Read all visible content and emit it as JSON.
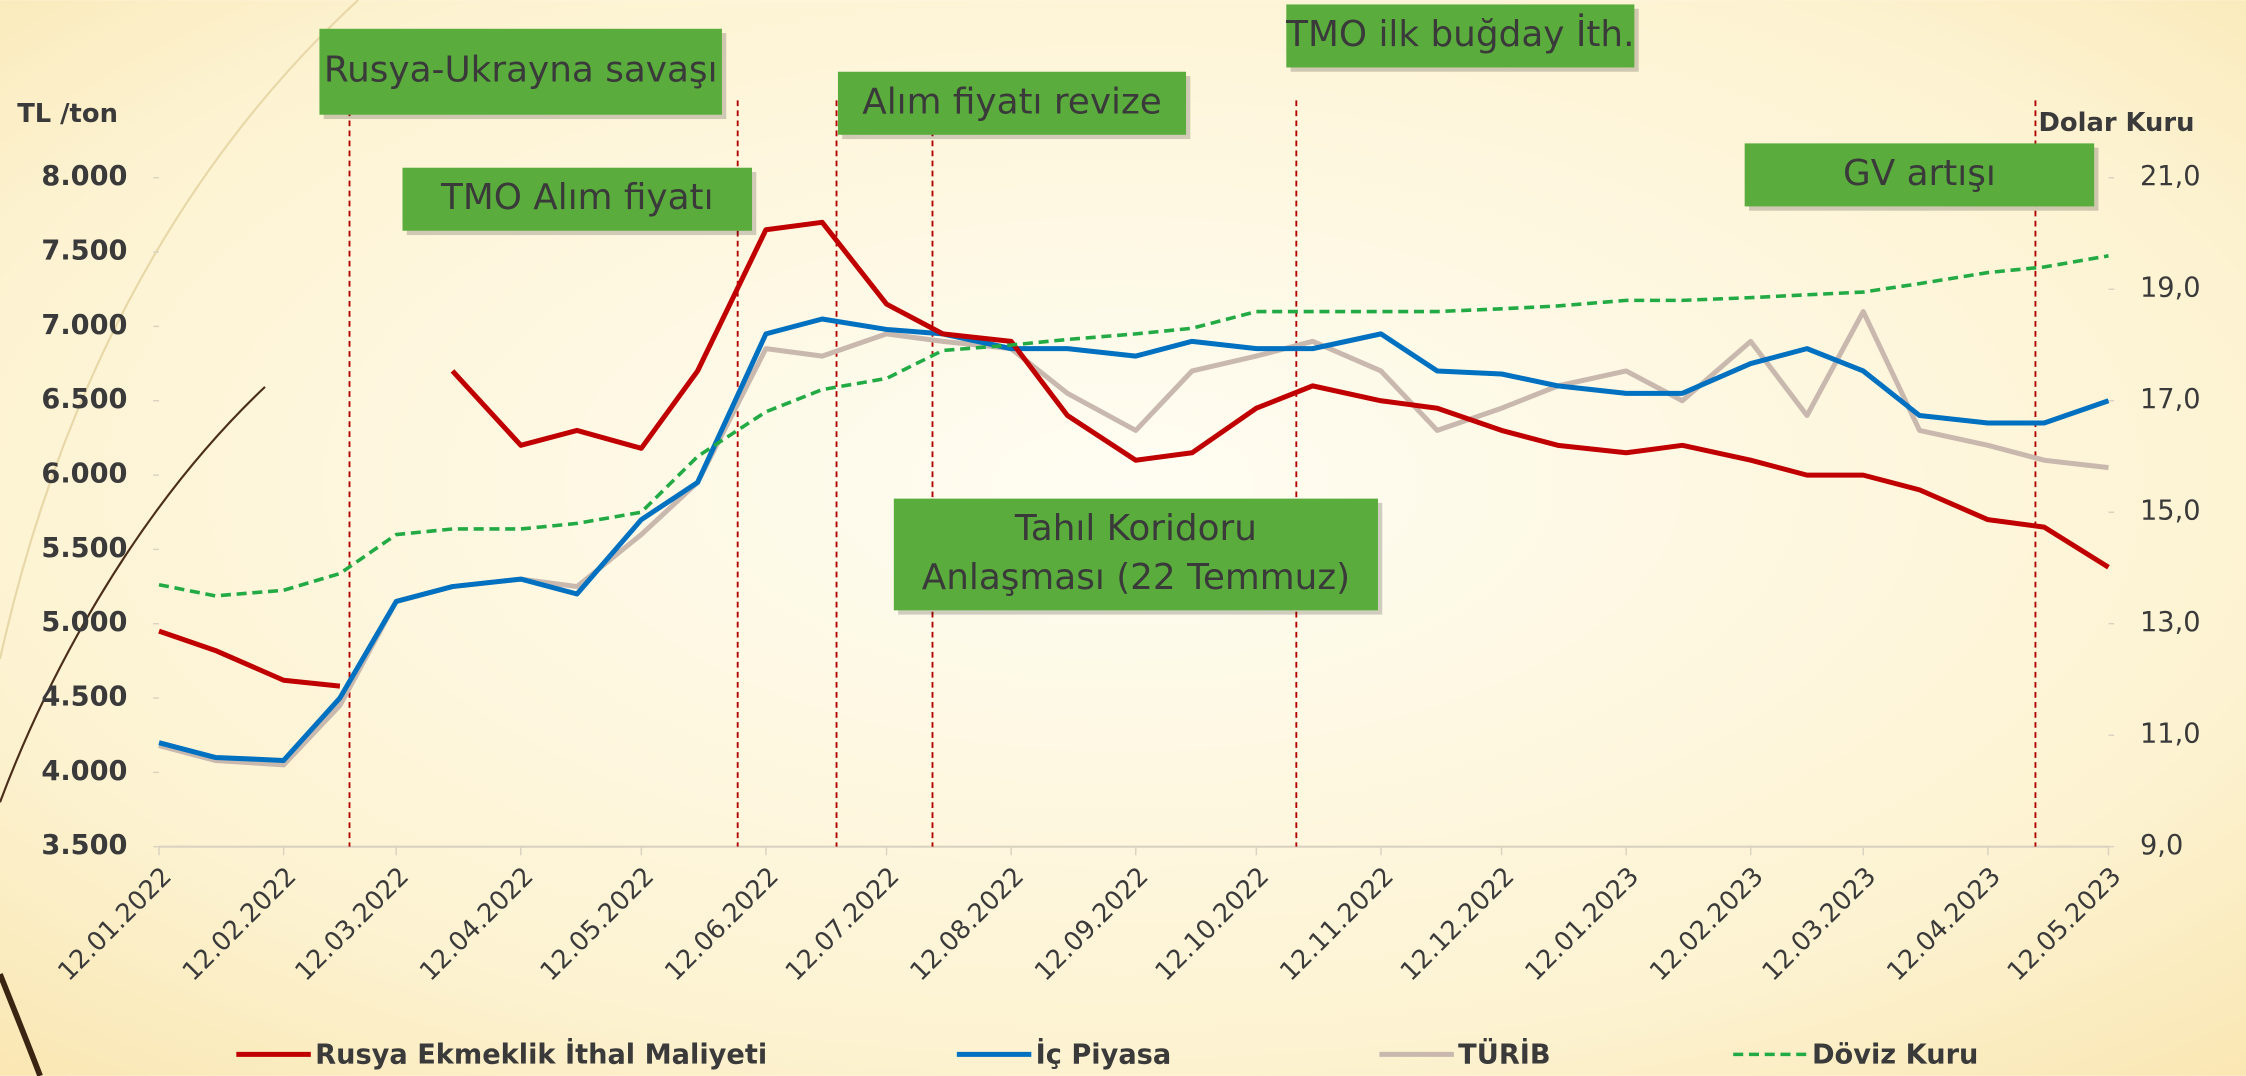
{
  "chart_data": {
    "type": "line",
    "y_label": "TL /ton",
    "y2_label": "Dolar Kuru",
    "x": [
      "12.01.2022",
      "26.01.2022",
      "12.02.2022",
      "26.02.2022",
      "12.03.2022",
      "26.03.2022",
      "12.04.2022",
      "26.04.2022",
      "12.05.2022",
      "26.05.2022",
      "12.06.2022",
      "26.06.2022",
      "12.07.2022",
      "26.07.2022",
      "12.08.2022",
      "26.08.2022",
      "12.09.2022",
      "26.09.2022",
      "12.10.2022",
      "26.10.2022",
      "12.11.2022",
      "26.11.2022",
      "12.12.2022",
      "26.12.2022",
      "12.01.2023",
      "26.01.2023",
      "12.02.2023",
      "26.02.2023",
      "12.03.2023",
      "26.03.2023",
      "12.04.2023",
      "26.04.2023",
      "12.05.2023"
    ],
    "xlim": [
      "12.01.2022",
      "12.05.2023"
    ],
    "xticks": [
      "12.01.2022",
      "12.02.2022",
      "12.03.2022",
      "12.04.2022",
      "12.05.2022",
      "12.06.2022",
      "12.07.2022",
      "12.08.2022",
      "12.09.2022",
      "12.10.2022",
      "12.11.2022",
      "12.12.2022",
      "12.01.2023",
      "12.02.2023",
      "12.03.2023",
      "12.04.2023",
      "12.05.2023"
    ],
    "ylim": [
      3500,
      8000
    ],
    "yticks": [
      {
        "value": 3500,
        "label": "3.500"
      },
      {
        "value": 4000,
        "label": "4.000"
      },
      {
        "value": 4500,
        "label": "4.500"
      },
      {
        "value": 5000,
        "label": "5.000"
      },
      {
        "value": 5500,
        "label": "5.500"
      },
      {
        "value": 6000,
        "label": "6.000"
      },
      {
        "value": 6500,
        "label": "6.500"
      },
      {
        "value": 7000,
        "label": "7.000"
      },
      {
        "value": 7500,
        "label": "7.500"
      },
      {
        "value": 8000,
        "label": "8.000"
      }
    ],
    "y2lim": [
      9,
      21
    ],
    "y2ticks": [
      {
        "value": 9,
        "label": "9,0"
      },
      {
        "value": 11,
        "label": "11,0"
      },
      {
        "value": 13,
        "label": "13,0"
      },
      {
        "value": 15,
        "label": "15,0"
      },
      {
        "value": 17,
        "label": "17,0"
      },
      {
        "value": 19,
        "label": "19,0"
      },
      {
        "value": 21,
        "label": "21,0"
      }
    ],
    "series": [
      {
        "name": "Rusya Ekmeklik İthal Maliyeti",
        "color": "#c00000",
        "dash": false,
        "values": [
          4950,
          4820,
          4620,
          4580,
          null,
          6700,
          6200,
          6300,
          6180,
          6700,
          7650,
          7700,
          7150,
          6950,
          6900,
          6400,
          6100,
          6150,
          6450,
          6600,
          6500,
          6450,
          6300,
          6200,
          6150,
          6200,
          6100,
          6000,
          6000,
          5900,
          5700,
          5650,
          5380
        ]
      },
      {
        "name": "İç Piyasa",
        "color": "#0070c0",
        "dash": false,
        "values": [
          4200,
          4100,
          4080,
          4500,
          5150,
          5250,
          5300,
          5200,
          5700,
          5950,
          6950,
          7050,
          6980,
          6950,
          6850,
          6850,
          6800,
          6900,
          6850,
          6850,
          6950,
          6700,
          6680,
          6600,
          6550,
          6550,
          6750,
          6850,
          6700,
          6400,
          6350,
          6350,
          6500
        ]
      },
      {
        "name": "TÜRİB",
        "color": "#c9b8ae",
        "dash": false,
        "values": [
          4180,
          4080,
          4050,
          4450,
          5150,
          5250,
          5300,
          5250,
          5600,
          5950,
          6850,
          6800,
          6950,
          6900,
          6850,
          6550,
          6300,
          6700,
          6800,
          6900,
          6700,
          6300,
          6450,
          6600,
          6700,
          6500,
          6900,
          6400,
          7100,
          6300,
          6200,
          6100,
          6050
        ]
      },
      {
        "name": "Döviz Kuru",
        "color": "#22aa44",
        "dash": true,
        "axis": "y2",
        "values": [
          13.7,
          13.5,
          13.6,
          13.9,
          14.6,
          14.7,
          14.7,
          14.8,
          15.0,
          16.0,
          16.8,
          17.2,
          17.4,
          17.9,
          18.0,
          18.1,
          18.2,
          18.3,
          18.6,
          18.6,
          18.6,
          18.6,
          18.65,
          18.7,
          18.8,
          18.8,
          18.85,
          18.9,
          18.95,
          19.1,
          19.3,
          19.4,
          19.6
        ]
      }
    ],
    "annotations": [
      {
        "lines": [
          "Rusya-Ukrayna savaşı"
        ]
      },
      {
        "lines": [
          "TMO Alım fiyatı"
        ]
      },
      {
        "lines": [
          "Alım fiyatı revize"
        ]
      },
      {
        "lines": [
          "Tahıl Koridoru",
          "Anlaşması (22 Temmuz)"
        ]
      },
      {
        "lines": [
          "TMO ilk buğday İth."
        ]
      },
      {
        "lines": [
          "GV artışı"
        ]
      }
    ]
  }
}
